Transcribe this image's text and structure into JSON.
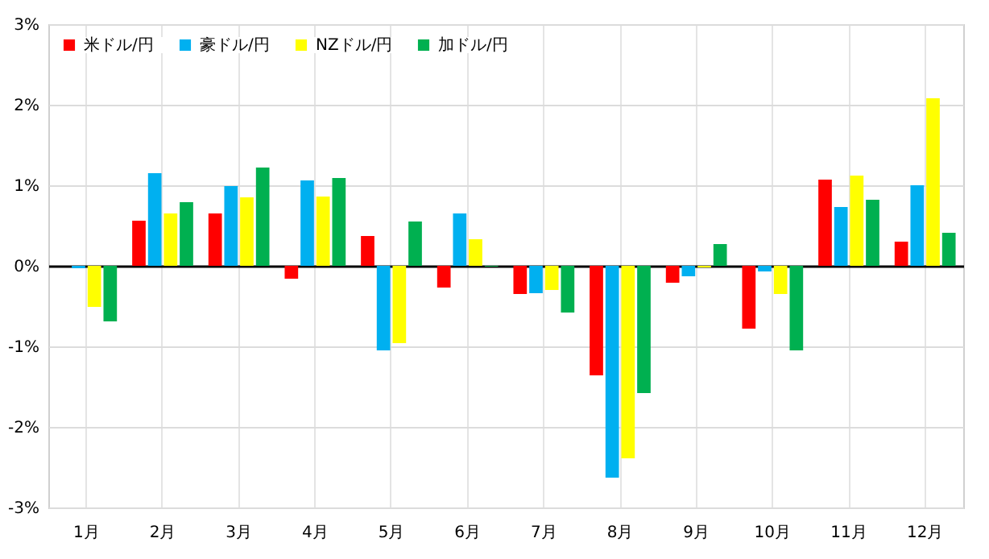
{
  "chart_data": {
    "type": "bar",
    "categories": [
      "1月",
      "2月",
      "3月",
      "4月",
      "5月",
      "6月",
      "7月",
      "8月",
      "9月",
      "10月",
      "11月",
      "12月"
    ],
    "series": [
      {
        "name": "米ドル/円",
        "color": "#ff0000",
        "values": [
          0,
          0.56,
          0.65,
          -0.16,
          0.37,
          -0.27,
          -0.35,
          -1.36,
          -0.21,
          -0.78,
          1.07,
          0.3
        ]
      },
      {
        "name": "豪ドル/円",
        "color": "#00b0f0",
        "values": [
          -0.03,
          1.15,
          0.99,
          1.06,
          -1.05,
          0.65,
          -0.34,
          -2.63,
          -0.13,
          -0.07,
          0.73,
          1.0
        ]
      },
      {
        "name": "NZドル/円",
        "color": "#ffff00",
        "values": [
          -0.51,
          0.65,
          0.85,
          0.86,
          -0.96,
          0.33,
          -0.3,
          -2.39,
          -0.02,
          -0.35,
          1.12,
          2.08
        ]
      },
      {
        "name": "加ドル/円",
        "color": "#00b050",
        "values": [
          -0.69,
          0.79,
          1.22,
          1.09,
          0.55,
          -0.01,
          -0.58,
          -1.58,
          0.27,
          -1.05,
          0.82,
          0.41
        ]
      }
    ],
    "ylim": [
      -3,
      3
    ],
    "yticks": [
      {
        "value": -3,
        "label": "-3%"
      },
      {
        "value": -2,
        "label": "-2%"
      },
      {
        "value": -1,
        "label": "-1%"
      },
      {
        "value": 0,
        "label": "0%"
      },
      {
        "value": 1,
        "label": "1%"
      },
      {
        "value": 2,
        "label": "2%"
      },
      {
        "value": 3,
        "label": "3%"
      }
    ],
    "grid": true,
    "legend": "top left"
  }
}
